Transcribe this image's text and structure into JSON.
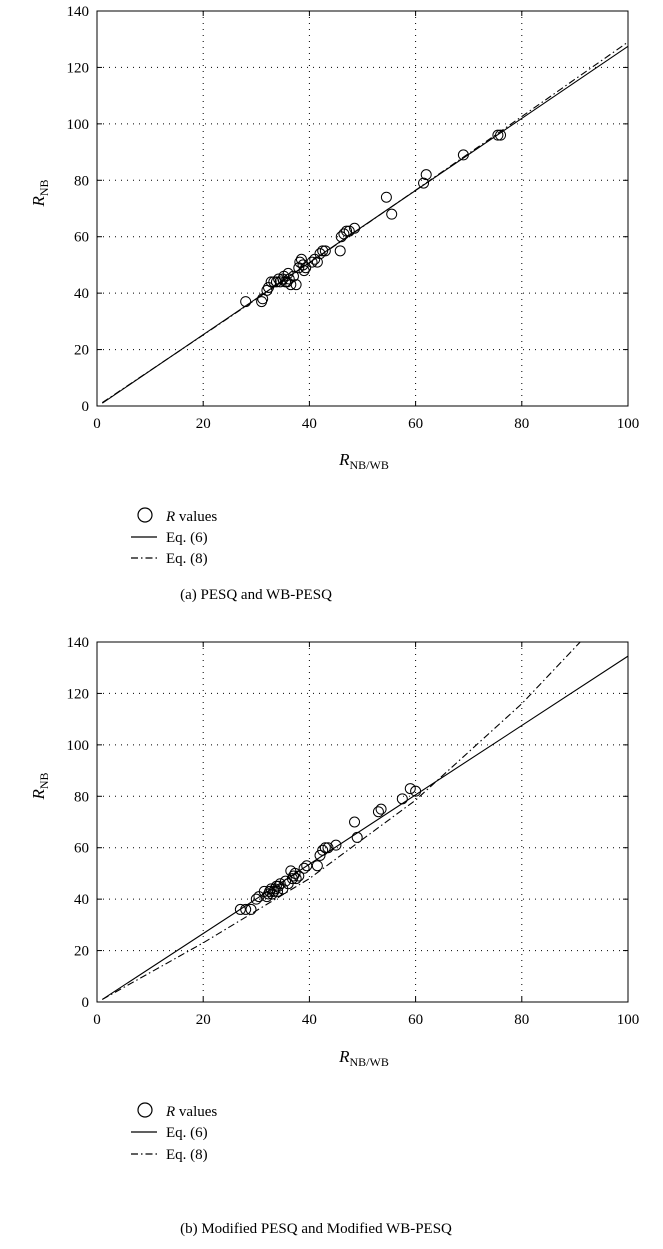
{
  "chart_data": [
    {
      "type": "scatter",
      "caption": "(a)  PESQ and WB-PESQ",
      "xlabel_main": "R",
      "xlabel_sub": "NB/WB",
      "ylabel_main": "R",
      "ylabel_sub": "NB",
      "xlim": [
        0,
        100
      ],
      "ylim": [
        0,
        140
      ],
      "x_ticks": [
        "0",
        "20",
        "40",
        "60",
        "80",
        "100"
      ],
      "y_ticks": [
        "0",
        "20",
        "40",
        "60",
        "80",
        "100",
        "120",
        "140"
      ],
      "grid": true,
      "legend": [
        {
          "symbol": "circle",
          "label_italic": "R",
          "label_rest": " values"
        },
        {
          "symbol": "solid",
          "label_italic": "",
          "label_rest": "Eq. (6)"
        },
        {
          "symbol": "dashdot",
          "label_italic": "",
          "label_rest": "Eq. (8)"
        }
      ],
      "series": [
        {
          "kind": "points",
          "x": [
            28,
            31,
            31.2,
            32,
            32.3,
            32.8,
            33.3,
            33.8,
            34.2,
            34.5,
            35,
            35.2,
            35.5,
            35.8,
            36,
            36.2,
            36.5,
            37,
            37.5,
            38,
            38.2,
            38.5,
            38.8,
            39,
            39.3,
            40.5,
            41,
            41.5,
            42,
            42.5,
            43,
            45.8,
            46,
            46.5,
            47,
            47.5,
            48.5,
            54.5,
            55.5,
            61.5,
            62,
            69,
            75.5,
            76
          ],
          "y": [
            37,
            37,
            38,
            41,
            42,
            44,
            44,
            44,
            45,
            44,
            45,
            46,
            44,
            44,
            47,
            45,
            43,
            46,
            43,
            49,
            51,
            52,
            50,
            48,
            49,
            51,
            52,
            51,
            54,
            55,
            55,
            55,
            60,
            61,
            62,
            62,
            63,
            74,
            68,
            79,
            82,
            89,
            96,
            96
          ]
        },
        {
          "kind": "solid",
          "x": [
            1,
            100
          ],
          "y": [
            1,
            127.5
          ]
        },
        {
          "kind": "dashdot",
          "x": [
            1,
            25,
            50,
            75,
            100
          ],
          "y": [
            1.2,
            31.5,
            63.5,
            96,
            129
          ]
        }
      ]
    },
    {
      "type": "scatter",
      "caption": "(b)  Modified PESQ and Modified WB-PESQ",
      "xlabel_main": "R",
      "xlabel_sub": "NB/WB",
      "ylabel_main": "R",
      "ylabel_sub": "NB",
      "xlim": [
        0,
        100
      ],
      "ylim": [
        0,
        140
      ],
      "x_ticks": [
        "0",
        "20",
        "40",
        "60",
        "80",
        "100"
      ],
      "y_ticks": [
        "0",
        "20",
        "40",
        "60",
        "80",
        "100",
        "120",
        "140"
      ],
      "grid": true,
      "legend": [
        {
          "symbol": "circle",
          "label_italic": "R",
          "label_rest": " values"
        },
        {
          "symbol": "solid",
          "label_italic": "",
          "label_rest": "Eq. (6)"
        },
        {
          "symbol": "dashdot",
          "label_italic": "",
          "label_rest": "Eq. (8)"
        }
      ],
      "series": [
        {
          "kind": "points",
          "x": [
            27,
            28,
            29,
            30,
            30.5,
            31.5,
            32,
            32.3,
            32.5,
            32.8,
            33,
            33.3,
            33.5,
            33.8,
            34,
            34.2,
            34.5,
            35,
            35.5,
            36,
            36.5,
            36.8,
            37,
            37.3,
            37.5,
            38,
            39,
            39.5,
            41.5,
            42,
            42.5,
            43,
            43.5,
            45,
            48.5,
            49,
            53,
            53.5,
            57.5,
            59,
            60
          ],
          "y": [
            36,
            36,
            36,
            40,
            41,
            43,
            41,
            42,
            43,
            44,
            42,
            43,
            44,
            45,
            43,
            45,
            46,
            44,
            47,
            46,
            51,
            48,
            49,
            50,
            48,
            49,
            52,
            53,
            53,
            57,
            59,
            60,
            60,
            61,
            70,
            64,
            74,
            75,
            79,
            83,
            82
          ]
        },
        {
          "kind": "solid",
          "x": [
            1,
            100
          ],
          "y": [
            1,
            134.5
          ]
        },
        {
          "kind": "dashdot",
          "x": [
            1,
            20,
            40,
            60,
            80,
            91
          ],
          "y": [
            1,
            23,
            48,
            78.5,
            116,
            140
          ]
        }
      ]
    }
  ]
}
